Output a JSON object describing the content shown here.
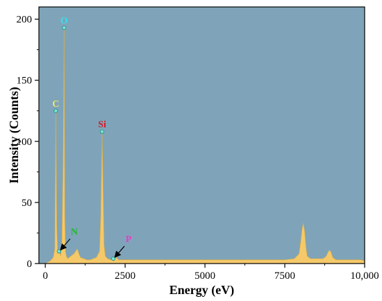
{
  "chart_data": {
    "type": "area",
    "title": "",
    "xlabel": "Energy (eV)",
    "ylabel": "Intensity (Counts)",
    "xlim": [
      -200,
      10000
    ],
    "ylim": [
      0,
      210
    ],
    "x_ticks": [
      0,
      2500,
      5000,
      7500,
      10000
    ],
    "x_tick_labels": [
      "0",
      "2500",
      "5000",
      "7500",
      "10,000"
    ],
    "y_ticks": [
      0,
      50,
      100,
      150,
      200
    ],
    "y_tick_labels": [
      "0",
      "50",
      "100",
      "150",
      "200"
    ],
    "grid": false,
    "legend": "none",
    "plot_background": "#7fa4b9",
    "spectrum_color": "#f5c96a",
    "series": [
      {
        "x": [
          0,
          150,
          250,
          300,
          330,
          360,
          390,
          440,
          480,
          520,
          560,
          590,
          610,
          630,
          660,
          700,
          800,
          900,
          950,
          1000,
          1050,
          1100,
          1200,
          1300,
          1400,
          1500,
          1600,
          1700,
          1740,
          1780,
          1810,
          1840,
          1880,
          1950,
          2050,
          2150,
          2220,
          2300,
          2500,
          3000,
          3500,
          4000,
          4500,
          5000,
          5500,
          6000,
          6500,
          7000,
          7500,
          7800,
          7950,
          8000,
          8040,
          8080,
          8120,
          8160,
          8200,
          8300,
          8500,
          8700,
          8800,
          8850,
          8900,
          8950,
          9000,
          9100,
          9300,
          9500,
          9700,
          9900,
          10000
        ],
        "y": [
          0,
          2,
          5,
          12,
          125,
          30,
          8,
          10,
          6,
          15,
          80,
          193,
          40,
          10,
          6,
          4,
          6,
          8,
          10,
          12,
          8,
          5,
          4,
          3,
          3,
          4,
          5,
          10,
          40,
          108,
          60,
          15,
          6,
          4,
          3,
          3,
          5,
          3,
          3,
          3,
          3,
          3,
          3,
          3,
          3,
          3,
          3,
          3,
          3,
          4,
          8,
          18,
          28,
          33,
          26,
          14,
          6,
          4,
          4,
          4,
          6,
          9,
          11,
          9,
          5,
          3,
          3,
          3,
          3,
          3,
          2
        ]
      }
    ],
    "annotations": [
      {
        "label": "C",
        "x": 330,
        "y": 125,
        "color": "#f2e46d"
      },
      {
        "label": "O",
        "x": 590,
        "y": 193,
        "color": "#35e0ee"
      },
      {
        "label": "Si",
        "x": 1780,
        "y": 108,
        "color": "#d01c2a"
      },
      {
        "label": "N",
        "x": 430,
        "y": 10,
        "color": "#1fb82e"
      },
      {
        "label": "P",
        "x": 2130,
        "y": 4,
        "color": "#e83ec8"
      }
    ]
  }
}
